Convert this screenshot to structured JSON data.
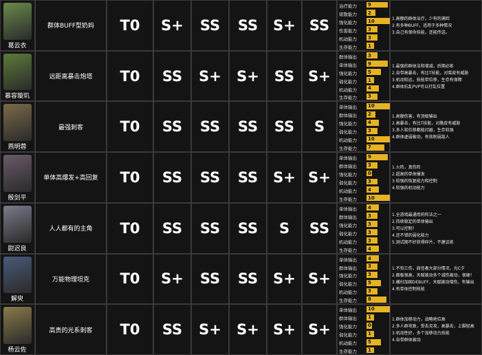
{
  "rows": [
    {
      "name": "葛云衣",
      "description": "群体BUFF型奶妈",
      "tier": "T0",
      "ratings": [
        "S+",
        "SS",
        "SS",
        "S+",
        "SS"
      ],
      "stats": [
        {
          "label": "治疗能力",
          "value": 9
        },
        {
          "label": "驱散能力",
          "value": 2
        },
        {
          "label": "强化能力",
          "value": 10
        },
        {
          "label": "伤害能力",
          "value": 3
        },
        {
          "label": "机动能力",
          "value": 3
        },
        {
          "label": "生存能力",
          "value": 1
        }
      ],
      "notes": [
        "1.高额的群体治疗，少有的满回",
        "2.有多种BUFF，适用于多种情况",
        "3.自己有保命技能，还能传送。"
      ]
    },
    {
      "name": "慕容璇玑",
      "description": "远距离暴击炮塔",
      "tier": "T0",
      "ratings": [
        "SS",
        "S+",
        "S+",
        "SS",
        "S+"
      ],
      "stats": [
        {
          "label": "群体输出",
          "value": 3
        },
        {
          "label": "单体输出",
          "value": 9
        },
        {
          "label": "强化能力",
          "value": 5
        },
        {
          "label": "弱化能力",
          "value": 1
        },
        {
          "label": "机动能力",
          "value": 4
        },
        {
          "label": "生存能力",
          "value": 3
        }
      ],
      "notes": [
        "1.最强的群体法和增减，后期必练",
        "2.自带高暴击，有比T技能，对菜皮有威胁",
        "3.机动较远，技能带位移，生存有保障",
        "4.群体抗乱PVP可以打乱位置"
      ]
    },
    {
      "name": "燕明蓉",
      "description": "最强刺客",
      "tier": "T0",
      "ratings": [
        "SS",
        "SS",
        "SS",
        "SS",
        "S"
      ],
      "stats": [
        {
          "label": "单体输出",
          "value": 10
        },
        {
          "label": "群体输出",
          "value": 2
        },
        {
          "label": "强化能力",
          "value": 4
        },
        {
          "label": "弱化能力",
          "value": 3
        },
        {
          "label": "机动能力",
          "value": 10
        },
        {
          "label": "生存能力",
          "value": 7
        }
      ],
      "notes": [
        "1.高额伤害，有顶级输出",
        "2.高暴击，有比T技能，对脆皮有威胁",
        "3.多人和位移都能闪避，生存较强",
        "4.群体虚弱被动，有效削弱敌人"
      ]
    },
    {
      "name": "殷剑平",
      "description": "单体高爆发+高回复",
      "tier": "T0",
      "ratings": [
        "SS",
        "SS",
        "SS",
        "S+",
        "S+"
      ],
      "stats": [
        {
          "label": "单体输出",
          "value": 9
        },
        {
          "label": "群体输出",
          "value": 3
        },
        {
          "label": "强化能力",
          "value": 0
        },
        {
          "label": "弱化能力",
          "value": 3
        },
        {
          "label": "机动能力",
          "value": 4
        },
        {
          "label": "生存能力",
          "value": 10
        }
      ],
      "notes": [
        "1.火阵，真伤阵",
        "2.超高的单体爆发",
        "3.较强的恢复能力和控制",
        "4.较强的机动能力"
      ]
    },
    {
      "name": "尉迟良",
      "description": "人人都有的主角",
      "tier": "T0",
      "ratings": [
        "SS",
        "SS",
        "SS",
        "S",
        "SS"
      ],
      "stats": [
        {
          "label": "单体输出",
          "value": 4
        },
        {
          "label": "群体输出",
          "value": 3
        },
        {
          "label": "强化能力",
          "value": 3
        },
        {
          "label": "弱化能力",
          "value": 3
        },
        {
          "label": "机动能力",
          "value": 3
        },
        {
          "label": "生存能力",
          "value": 4
        }
      ],
      "notes": [
        "1.全游戏最通用的阵法之一",
        "2.持续稳定的单体输出",
        "3.可以控制！",
        "4.还不错的弱化能力",
        "5.测试期不好获得碎片，不建议练"
      ]
    },
    {
      "name": "解臾",
      "description": "万能物理坦克",
      "tier": "T0",
      "ratings": [
        "S+",
        "SS",
        "SS",
        "S+",
        "S+"
      ],
      "stats": [
        {
          "label": "单体输出",
          "value": 4
        },
        {
          "label": "群体输出",
          "value": 3
        },
        {
          "label": "强化能力",
          "value": 3
        },
        {
          "label": "弱化能力",
          "value": 5
        },
        {
          "label": "机动能力",
          "value": 3
        },
        {
          "label": "生存能力",
          "value": 8
        }
      ],
      "notes": [
        "1.不怕三伤，肩任着大部分情况，光C夕",
        "2.面板很高，天赋被动多个减伤被动，很硬！",
        "3.横扫加固DEBUFF，天赋被动增伤，有输出",
        "4.有单体控制技能"
      ]
    },
    {
      "name": "杨云佐",
      "description": "高贵的光系刺客",
      "tier": "T0",
      "ratings": [
        "SS",
        "S+",
        "S+",
        "S+",
        "S+"
      ],
      "stats": [
        {
          "label": "单体输出",
          "value": 10
        },
        {
          "label": "群体输出",
          "value": 1
        },
        {
          "label": "强化能力",
          "value": 0
        },
        {
          "label": "弱化能力",
          "value": 1
        },
        {
          "label": "机动能力",
          "value": 5
        },
        {
          "label": "生存能力",
          "value": 1
        }
      ],
      "notes": [
        "1.群体加移动力，战略地位高",
        "2.多人群攻致，受击克攻，高暴击，上脚轻高",
        "3.机动性好，多个加移动力技能",
        "4.自带群体被动"
      ]
    }
  ]
}
